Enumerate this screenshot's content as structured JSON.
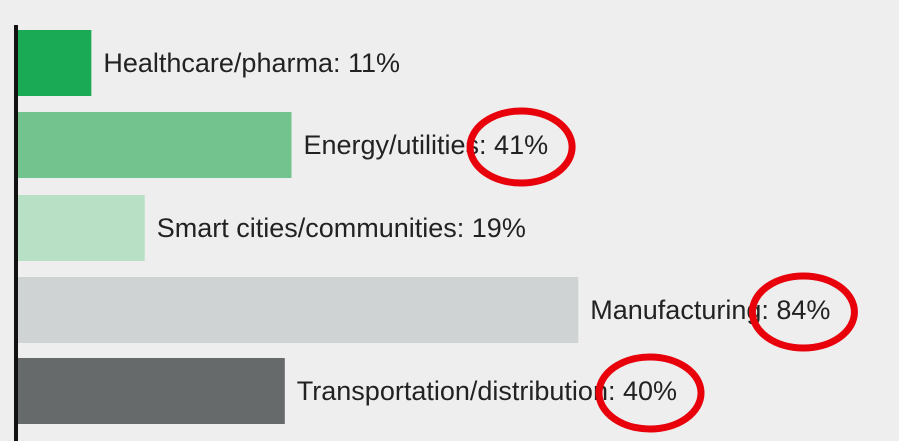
{
  "chart_data": {
    "type": "bar",
    "orientation": "horizontal",
    "values": [
      11,
      41,
      19,
      84,
      40
    ],
    "value_labels": [
      "Healthcare/pharma: 11%",
      "Energy/utilities: 41%",
      "Smart cities/communities: 19%",
      "Manufacturing: 84%",
      "Transportation/distribution: 40%"
    ],
    "colors": [
      "#1aaa55",
      "#72c38d",
      "#b8e0c4",
      "#d0d3d3",
      "#676a6b"
    ]
  }
}
